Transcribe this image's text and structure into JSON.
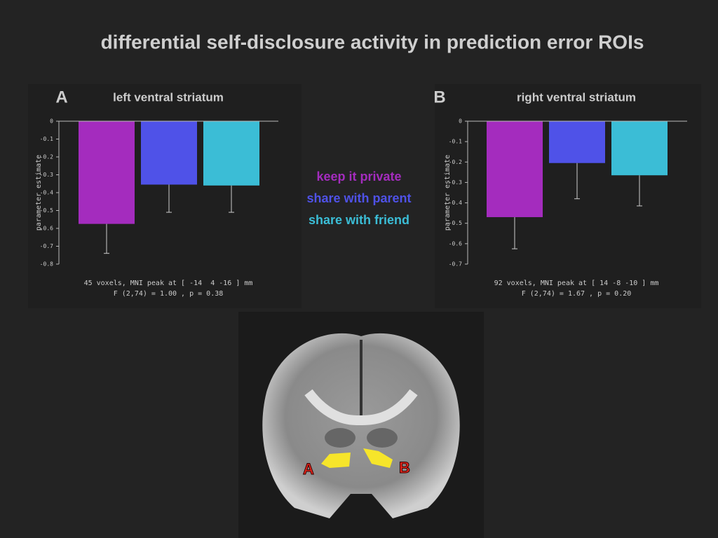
{
  "title": "differential self-disclosure activity in prediction error ROIs",
  "legend": [
    {
      "name": "keep it private",
      "color": "#a42cbe"
    },
    {
      "name": "share with parent",
      "color": "#4f52e8"
    },
    {
      "name": "share with friend",
      "color": "#3bbdd6"
    }
  ],
  "chart_data": [
    {
      "type": "bar",
      "panel": "A",
      "title": "left ventral striatum",
      "ylabel": "parameter estimate",
      "values": [
        -0.575,
        -0.355,
        -0.36
      ],
      "errors": [
        0.165,
        0.155,
        0.15
      ],
      "ylim": [
        -0.8,
        0
      ],
      "yticks": [
        0,
        -0.1,
        -0.2,
        -0.3,
        -0.4,
        -0.5,
        -0.6,
        -0.7,
        -0.8
      ],
      "notes": [
        "45 voxels, MNI peak at [ -14  4 -16 ] mm",
        "F (2,74) = 1.00 , p = 0.38"
      ]
    },
    {
      "type": "bar",
      "panel": "B",
      "title": "right ventral striatum",
      "ylabel": "parameter estimate",
      "values": [
        -0.47,
        -0.205,
        -0.265
      ],
      "errors": [
        0.155,
        0.175,
        0.15
      ],
      "ylim": [
        -0.7,
        0
      ],
      "yticks": [
        0,
        -0.1,
        -0.2,
        -0.3,
        -0.4,
        -0.5,
        -0.6,
        -0.7
      ],
      "notes": [
        "92 voxels, MNI peak at [ 14 -8 -10 ] mm",
        "F (2,74) = 1.67 , p = 0.20"
      ]
    }
  ],
  "brain": {
    "labels": [
      "A",
      "B"
    ]
  }
}
